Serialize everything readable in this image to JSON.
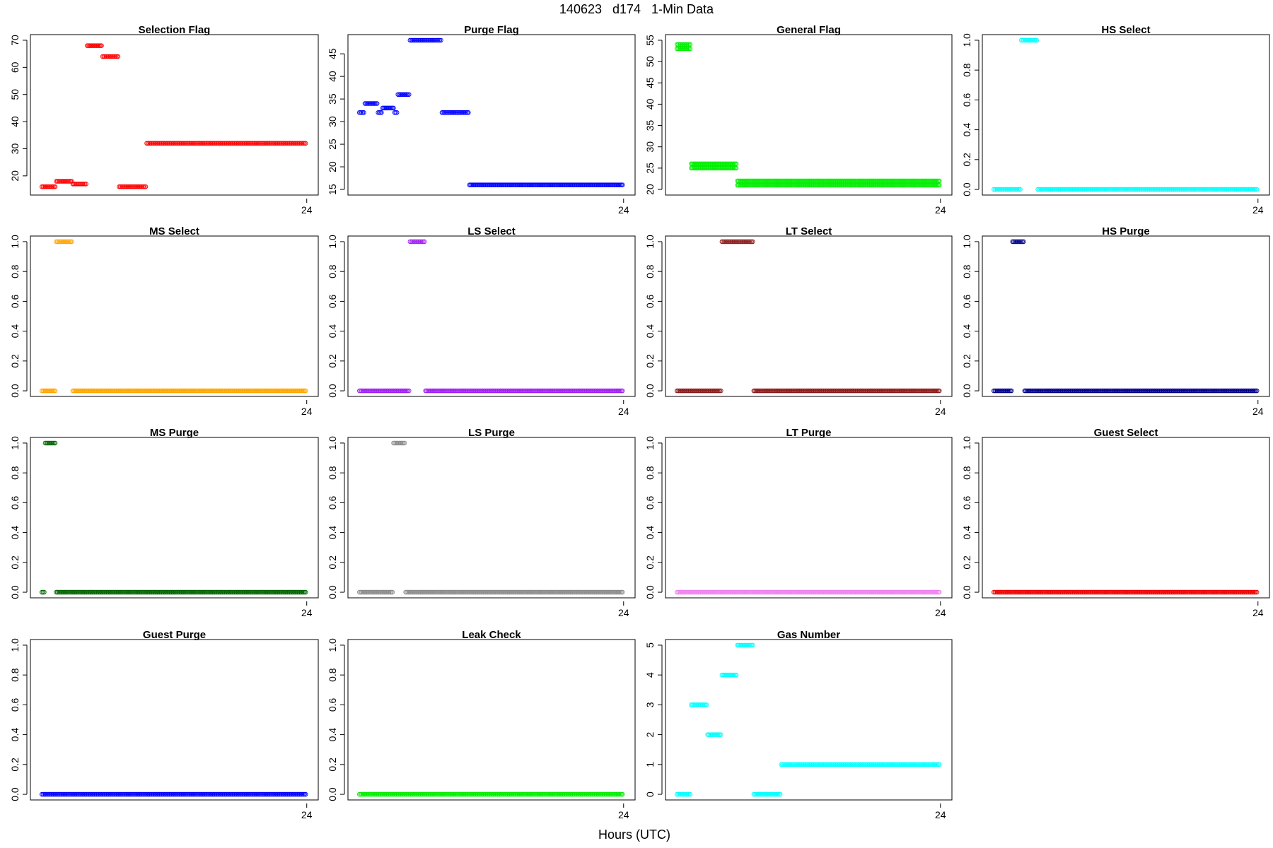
{
  "figure": {
    "title": "140623   d174   1-Min Data",
    "xlabel": "Hours (UTC)"
  },
  "chart_data": [
    {
      "type": "scatter",
      "title": "Selection Flag",
      "color": "#ff0000",
      "xlim": [
        0,
        24
      ],
      "ylim": [
        15,
        70
      ],
      "yticks": [
        20,
        30,
        40,
        50,
        60,
        70
      ],
      "xticks": [
        24
      ],
      "segments": [
        {
          "start": 0,
          "end": 1.3,
          "y": 16
        },
        {
          "start": 1.3,
          "end": 2.8,
          "y": 18
        },
        {
          "start": 2.8,
          "end": 4.1,
          "y": 17
        },
        {
          "start": 4.1,
          "end": 5.5,
          "y": 68
        },
        {
          "start": 5.5,
          "end": 7.0,
          "y": 64
        },
        {
          "start": 7.0,
          "end": 9.5,
          "y": 16
        },
        {
          "start": 9.5,
          "end": 24,
          "y": 32
        }
      ]
    },
    {
      "type": "scatter",
      "title": "Purge Flag",
      "color": "#0000ff",
      "xlim": [
        0,
        24
      ],
      "ylim": [
        15,
        48
      ],
      "yticks": [
        15,
        20,
        25,
        30,
        35,
        40,
        45
      ],
      "xticks": [
        24
      ],
      "segments": [
        {
          "start": 0,
          "end": 0.5,
          "y": 32
        },
        {
          "start": 0.5,
          "end": 1.7,
          "y": 34
        },
        {
          "start": 1.7,
          "end": 2.1,
          "y": 32
        },
        {
          "start": 2.1,
          "end": 3.2,
          "y": 33
        },
        {
          "start": 3.2,
          "end": 3.5,
          "y": 32
        },
        {
          "start": 3.5,
          "end": 4.6,
          "y": 36
        },
        {
          "start": 4.6,
          "end": 7.5,
          "y": 48
        },
        {
          "start": 7.5,
          "end": 10.0,
          "y": 32
        },
        {
          "start": 10.0,
          "end": 24,
          "y": 16
        }
      ]
    },
    {
      "type": "scatter",
      "title": "General Flag",
      "color": "#00ee00",
      "xlim": [
        0,
        24
      ],
      "ylim": [
        20,
        55
      ],
      "yticks": [
        20,
        25,
        30,
        35,
        40,
        45,
        50,
        55
      ],
      "xticks": [
        24
      ],
      "segments": [
        {
          "start": 0,
          "end": 1.3,
          "y": 54
        },
        {
          "start": 0,
          "end": 1.3,
          "y": 53
        },
        {
          "start": 1.3,
          "end": 5.5,
          "y": 26
        },
        {
          "start": 1.3,
          "end": 5.5,
          "y": 25
        },
        {
          "start": 5.5,
          "end": 24,
          "y": 22
        },
        {
          "start": 5.5,
          "end": 24,
          "y": 21
        }
      ]
    },
    {
      "type": "scatter",
      "title": "HS Select",
      "color": "#00ffff",
      "xlim": [
        0,
        24
      ],
      "ylim": [
        0,
        1
      ],
      "yticks": [
        0.0,
        0.2,
        0.4,
        0.6,
        0.8,
        1.0
      ],
      "xticks": [
        24
      ],
      "segments": [
        {
          "start": 0,
          "end": 2.5,
          "y": 0
        },
        {
          "start": 2.5,
          "end": 4.0,
          "y": 1
        },
        {
          "start": 4.0,
          "end": 24,
          "y": 0
        }
      ]
    },
    {
      "type": "scatter",
      "title": "MS Select",
      "color": "#ffa500",
      "xlim": [
        0,
        24
      ],
      "ylim": [
        0,
        1
      ],
      "yticks": [
        0.0,
        0.2,
        0.4,
        0.6,
        0.8,
        1.0
      ],
      "xticks": [
        24
      ],
      "segments": [
        {
          "start": 0,
          "end": 1.3,
          "y": 0
        },
        {
          "start": 1.3,
          "end": 2.8,
          "y": 1
        },
        {
          "start": 2.8,
          "end": 24,
          "y": 0
        }
      ]
    },
    {
      "type": "scatter",
      "title": "LS Select",
      "color": "#a020f0",
      "xlim": [
        0,
        24
      ],
      "ylim": [
        0,
        1
      ],
      "yticks": [
        0.0,
        0.2,
        0.4,
        0.6,
        0.8,
        1.0
      ],
      "xticks": [
        24
      ],
      "segments": [
        {
          "start": 0,
          "end": 4.6,
          "y": 0
        },
        {
          "start": 4.6,
          "end": 6.0,
          "y": 1
        },
        {
          "start": 6.0,
          "end": 24,
          "y": 0
        }
      ]
    },
    {
      "type": "scatter",
      "title": "LT Select",
      "color": "#8b1a1a",
      "xlim": [
        0,
        24
      ],
      "ylim": [
        0,
        1
      ],
      "yticks": [
        0.0,
        0.2,
        0.4,
        0.6,
        0.8,
        1.0
      ],
      "xticks": [
        24
      ],
      "segments": [
        {
          "start": 0,
          "end": 4.1,
          "y": 0
        },
        {
          "start": 4.1,
          "end": 7.0,
          "y": 1
        },
        {
          "start": 7.0,
          "end": 24,
          "y": 0
        }
      ]
    },
    {
      "type": "scatter",
      "title": "HS Purge",
      "color": "#00008b",
      "xlim": [
        0,
        24
      ],
      "ylim": [
        0,
        1
      ],
      "yticks": [
        0.0,
        0.2,
        0.4,
        0.6,
        0.8,
        1.0
      ],
      "xticks": [
        24
      ],
      "segments": [
        {
          "start": 0,
          "end": 1.7,
          "y": 0
        },
        {
          "start": 1.7,
          "end": 2.8,
          "y": 1
        },
        {
          "start": 2.8,
          "end": 24,
          "y": 0
        }
      ]
    },
    {
      "type": "scatter",
      "title": "MS Purge",
      "color": "#006400",
      "xlim": [
        0,
        24
      ],
      "ylim": [
        0,
        1
      ],
      "yticks": [
        0.0,
        0.2,
        0.4,
        0.6,
        0.8,
        1.0
      ],
      "xticks": [
        24
      ],
      "segments": [
        {
          "start": 0,
          "end": 0.3,
          "y": 0
        },
        {
          "start": 0.3,
          "end": 1.3,
          "y": 1
        },
        {
          "start": 1.3,
          "end": 24,
          "y": 0
        }
      ]
    },
    {
      "type": "scatter",
      "title": "LS Purge",
      "color": "#8c8c8c",
      "xlim": [
        0,
        24
      ],
      "ylim": [
        0,
        1
      ],
      "yticks": [
        0.0,
        0.2,
        0.4,
        0.6,
        0.8,
        1.0
      ],
      "xticks": [
        24
      ],
      "segments": [
        {
          "start": 0,
          "end": 3.1,
          "y": 0
        },
        {
          "start": 3.1,
          "end": 4.2,
          "y": 1
        },
        {
          "start": 4.2,
          "end": 24,
          "y": 0
        }
      ]
    },
    {
      "type": "scatter",
      "title": "LT Purge",
      "color": "#ee82ee",
      "xlim": [
        0,
        24
      ],
      "ylim": [
        0,
        1
      ],
      "yticks": [
        0.0,
        0.2,
        0.4,
        0.6,
        0.8,
        1.0
      ],
      "xticks": [
        24
      ],
      "segments": [
        {
          "start": 0,
          "end": 24,
          "y": 0
        }
      ]
    },
    {
      "type": "scatter",
      "title": "Guest Select",
      "color": "#ee0000",
      "xlim": [
        0,
        24
      ],
      "ylim": [
        0,
        1
      ],
      "yticks": [
        0.0,
        0.2,
        0.4,
        0.6,
        0.8,
        1.0
      ],
      "xticks": [
        24
      ],
      "segments": [
        {
          "start": 0,
          "end": 24,
          "y": 0
        }
      ]
    },
    {
      "type": "scatter",
      "title": "Guest Purge",
      "color": "#0000ff",
      "xlim": [
        0,
        24
      ],
      "ylim": [
        0,
        1
      ],
      "yticks": [
        0.0,
        0.2,
        0.4,
        0.6,
        0.8,
        1.0
      ],
      "xticks": [
        24
      ],
      "segments": [
        {
          "start": 0,
          "end": 24,
          "y": 0
        }
      ]
    },
    {
      "type": "scatter",
      "title": "Leak Check",
      "color": "#00ee00",
      "xlim": [
        0,
        24
      ],
      "ylim": [
        0,
        1
      ],
      "yticks": [
        0.0,
        0.2,
        0.4,
        0.6,
        0.8,
        1.0
      ],
      "xticks": [
        24
      ],
      "segments": [
        {
          "start": 0,
          "end": 24,
          "y": 0
        }
      ]
    },
    {
      "type": "scatter",
      "title": "Gas Number",
      "color": "#00ffff",
      "xlim": [
        0,
        24
      ],
      "ylim": [
        0,
        5
      ],
      "yticks": [
        0,
        1,
        2,
        3,
        4,
        5
      ],
      "xticks": [
        24
      ],
      "segments": [
        {
          "start": 0,
          "end": 1.3,
          "y": 0
        },
        {
          "start": 1.3,
          "end": 2.8,
          "y": 3
        },
        {
          "start": 2.8,
          "end": 4.1,
          "y": 2
        },
        {
          "start": 4.1,
          "end": 5.5,
          "y": 4
        },
        {
          "start": 5.5,
          "end": 7.0,
          "y": 5
        },
        {
          "start": 7.0,
          "end": 9.5,
          "y": 0
        },
        {
          "start": 9.5,
          "end": 24,
          "y": 1
        }
      ]
    }
  ]
}
